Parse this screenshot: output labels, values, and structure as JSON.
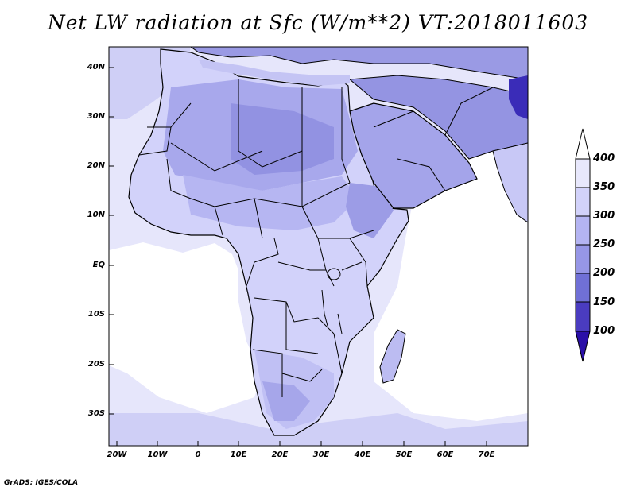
{
  "title": "Net LW radiation at Sfc (W/m**2) VT:2018011603",
  "credit": "GrADS: IGES/COLA",
  "lat_labels": [
    "40N",
    "30N",
    "20N",
    "10N",
    "EQ",
    "10S",
    "20S",
    "30S"
  ],
  "lon_labels": [
    "20W",
    "10W",
    "0",
    "10E",
    "20E",
    "30E",
    "40E",
    "50E",
    "60E",
    "70E"
  ],
  "colorbar": {
    "levels": [
      "400",
      "350",
      "300",
      "250",
      "200",
      "150",
      "100"
    ],
    "colors": [
      "#e8e8fc",
      "#d2d2fa",
      "#b4b4f2",
      "#9696e6",
      "#7070d6",
      "#4a3cc0",
      "#2a0fa8"
    ]
  },
  "palette": {
    "land_light": "#e3e3fb",
    "land_mid": "#bdbdf2",
    "land_dark": "#9d9de8",
    "ocean_light": "#e6e6fb",
    "ocean_white": "#ffffff",
    "border": "#000000"
  }
}
